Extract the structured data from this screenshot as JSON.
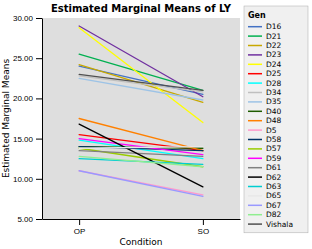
{
  "chart_data": {
    "type": "line",
    "title": "Estimated Marginal Means of LY",
    "xlabel": "Condition",
    "ylabel": "Estimated Marginal Means",
    "legend_title": "Gen",
    "legend": "right",
    "grid": false,
    "categories": [
      "OP",
      "SO"
    ],
    "ylim": [
      5.0,
      30.0
    ],
    "yticks": [
      {
        "value": 5.0,
        "label": "5.00"
      },
      {
        "value": 10.0,
        "label": "10.00"
      },
      {
        "value": 15.0,
        "label": "15.00"
      },
      {
        "value": 20.0,
        "label": "20.00"
      },
      {
        "value": 25.0,
        "label": "25.00"
      },
      {
        "value": 30.0,
        "label": "30.00"
      }
    ],
    "series": [
      {
        "name": "D16",
        "color": "#4472C4",
        "values": [
          24.0,
          20.5
        ]
      },
      {
        "name": "D21",
        "color": "#00B050",
        "values": [
          25.5,
          21.0
        ]
      },
      {
        "name": "D22",
        "color": "#C8A800",
        "values": [
          24.2,
          19.5
        ]
      },
      {
        "name": "D23",
        "color": "#7030A0",
        "values": [
          29.0,
          20.2
        ]
      },
      {
        "name": "D24",
        "color": "#FFFF00",
        "values": [
          28.8,
          17.0
        ]
      },
      {
        "name": "D25",
        "color": "#FF0000",
        "values": [
          15.5,
          13.5
        ]
      },
      {
        "name": "D28",
        "color": "#00FFFF",
        "values": [
          14.8,
          12.5
        ]
      },
      {
        "name": "D34",
        "color": "#C0C0C0",
        "values": [
          22.8,
          20.8
        ]
      },
      {
        "name": "D35",
        "color": "#9DC3E6",
        "values": [
          22.5,
          19.8
        ]
      },
      {
        "name": "D40",
        "color": "#1F5C00",
        "values": [
          14.0,
          13.8
        ]
      },
      {
        "name": "D48",
        "color": "#FF8000",
        "values": [
          17.5,
          13.5
        ]
      },
      {
        "name": "D5",
        "color": "#FF99CC",
        "values": [
          11.0,
          8.0
        ]
      },
      {
        "name": "D58",
        "color": "#003366",
        "values": [
          14.0,
          13.5
        ]
      },
      {
        "name": "D57",
        "color": "#99CC00",
        "values": [
          13.8,
          11.5
        ]
      },
      {
        "name": "D59",
        "color": "#FF00FF",
        "values": [
          15.0,
          13.0
        ]
      },
      {
        "name": "D61",
        "color": "#808080",
        "values": [
          13.5,
          12.8
        ]
      },
      {
        "name": "D62",
        "color": "#000000",
        "values": [
          16.8,
          9.0
        ]
      },
      {
        "name": "D63",
        "color": "#00CED1",
        "values": [
          12.5,
          11.8
        ]
      },
      {
        "name": "D65",
        "color": "#E8E8E8",
        "values": [
          13.8,
          14.0
        ]
      },
      {
        "name": "D67",
        "color": "#9999FF",
        "values": [
          11.0,
          7.8
        ]
      },
      {
        "name": "D82",
        "color": "#90EE90",
        "values": [
          12.8,
          11.5
        ]
      },
      {
        "name": "Vishala",
        "color": "#505050",
        "values": [
          23.0,
          21.0
        ]
      }
    ]
  }
}
